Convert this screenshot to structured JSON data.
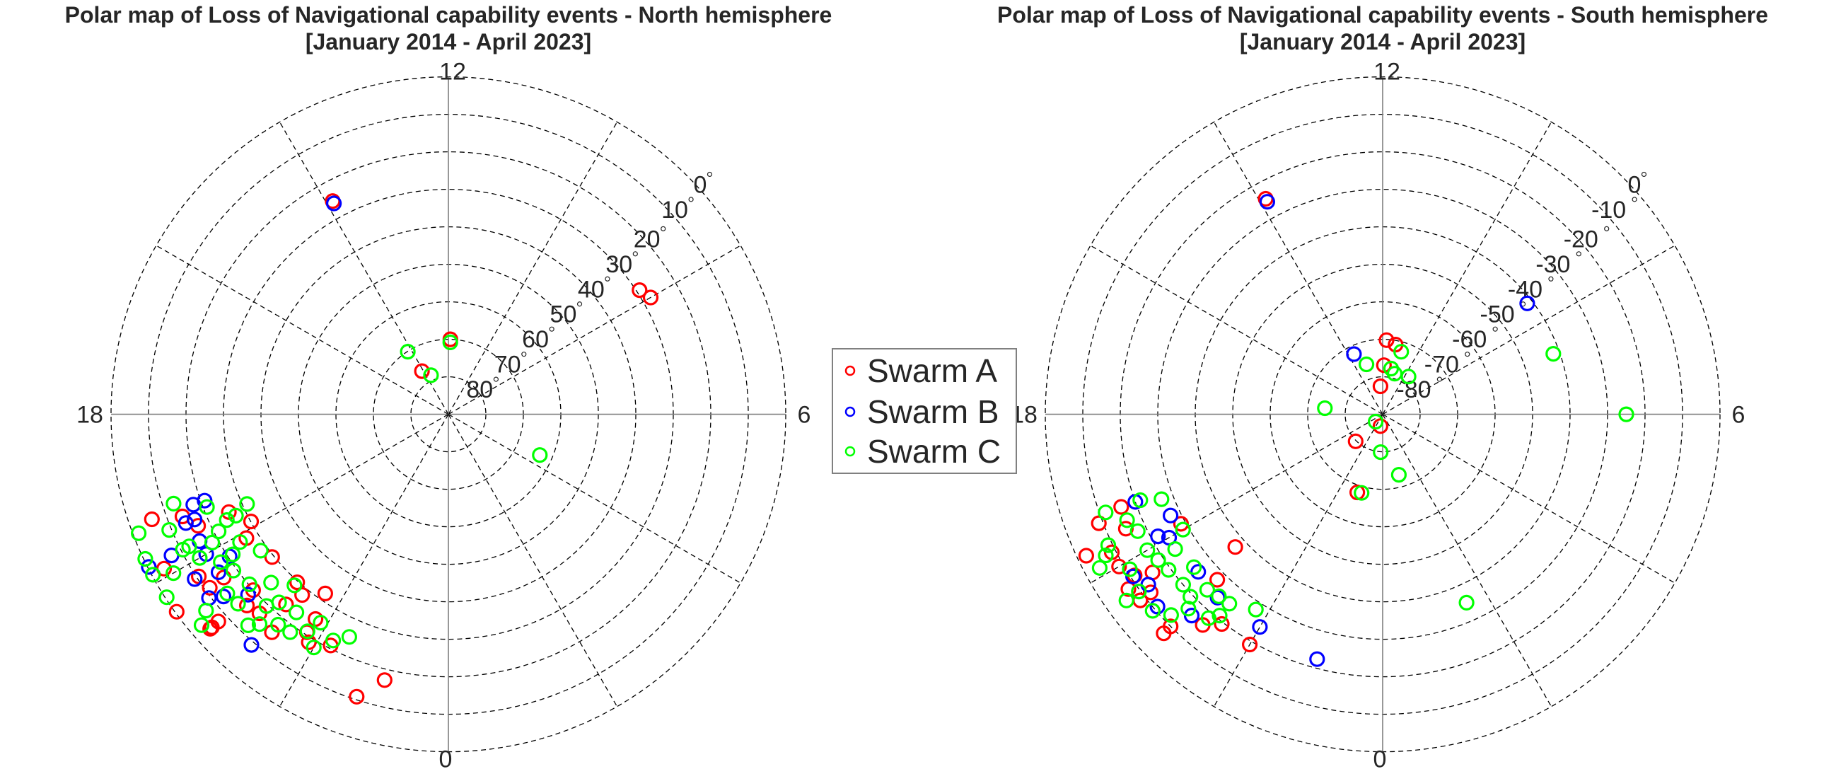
{
  "colors": {
    "Swarm A": "#ff0000",
    "Swarm B": "#0000ff",
    "Swarm C": "#00ff00",
    "grid": "#000000",
    "axis": "#7f7f7f"
  },
  "legend": {
    "placement": "center, between the two plots",
    "entries": [
      "Swarm A",
      "Swarm B",
      "Swarm C"
    ]
  },
  "chart_data": [
    {
      "type": "scatter",
      "coordinate_system": "polar (magnetic local time vs latitude)",
      "title": [
        "Polar map of Loss of Navigational capability events - North hemisphere",
        "[January 2014 - April 2023]"
      ],
      "angular_ticks": [
        "12",
        "6",
        "0",
        "18"
      ],
      "radial_ticks": [
        "80",
        "70",
        "60",
        "50",
        "40",
        "30",
        "20",
        "10",
        "0"
      ],
      "radial_tick_values": [
        80,
        70,
        60,
        50,
        40,
        30,
        20,
        10,
        0
      ],
      "radial_unit": "°",
      "rlim": [
        90,
        0
      ],
      "grid": true,
      "point_format": [
        "MLT (h)",
        "latitude (deg)"
      ],
      "series": [
        {
          "name": "Swarm A",
          "color": "#ff0000",
          "points": [
            [
              13.9,
              25.3
            ],
            [
              8.2,
              29.2
            ],
            [
              8.0,
              27.7
            ],
            [
              11.9,
              70.0
            ],
            [
              14.1,
              76.5
            ],
            [
              23.1,
              17.1
            ],
            [
              22.8,
              10.8
            ],
            [
              19.3,
              6.1
            ],
            [
              19.9,
              3.7
            ],
            [
              20.4,
              0.4
            ],
            [
              20.8,
              5.1
            ],
            [
              20.8,
              4.5
            ],
            [
              20.8,
              7.4
            ],
            [
              19.9,
              30.1
            ],
            [
              21.7,
              32.0
            ],
            [
              21.2,
              29.7
            ],
            [
              21.4,
              28.0
            ],
            [
              21.8,
              24.9
            ],
            [
              22.2,
              20.8
            ],
            [
              21.9,
              18.7
            ],
            [
              21.8,
              20.7
            ],
            [
              21.4,
              15.2
            ],
            [
              20.6,
              29.5
            ],
            [
              20.1,
              26.8
            ],
            [
              19.4,
              14.0
            ],
            [
              19.6,
              25.9
            ],
            [
              20.2,
              10.6
            ],
            [
              20.4,
              11.3
            ],
            [
              21.1,
              16.8
            ],
            [
              20.8,
              19.9
            ],
            [
              21.3,
              23.3
            ],
            [
              19.6,
              16.9
            ],
            [
              20.4,
              15.9
            ],
            [
              20.9,
              15.9
            ]
          ]
        },
        {
          "name": "Swarm B",
          "color": "#0000ff",
          "points": [
            [
              13.9,
              26.0
            ],
            [
              21.3,
              9.1
            ],
            [
              19.3,
              17.8
            ],
            [
              19.3,
              21.0
            ],
            [
              19.8,
              0.3
            ],
            [
              19.8,
              7.1
            ],
            [
              20.2,
              9.3
            ],
            [
              20.5,
              9.5
            ],
            [
              20.6,
              12.8
            ],
            [
              19.5,
              14.2
            ],
            [
              19.8,
              15.5
            ],
            [
              20.0,
              15.4
            ],
            [
              20.2,
              20.4
            ],
            [
              20.3,
              15.6
            ],
            [
              20.8,
              18.1
            ],
            [
              19.5,
              16.7
            ]
          ]
        },
        {
          "name": "Swarm C",
          "color": "#00ff00",
          "points": [
            [
              11.9,
              70.8
            ],
            [
              14.2,
              70.1
            ],
            [
              13.6,
              78.6
            ],
            [
              4.4,
              63.3
            ],
            [
              19.2,
              12.9
            ],
            [
              19.4,
              1.5
            ],
            [
              19.7,
              0.4
            ],
            [
              19.9,
              0.3
            ],
            [
              20.0,
              5.3
            ],
            [
              20.2,
              0.4
            ],
            [
              20.6,
              6.8
            ],
            [
              20.7,
              3.4
            ],
            [
              19.6,
              31.2
            ],
            [
              19.4,
              21.0
            ],
            [
              19.5,
              9.4
            ],
            [
              19.7,
              27.2
            ],
            [
              20.4,
              28.1
            ],
            [
              21.2,
              28.6
            ],
            [
              22.4,
              25.0
            ],
            [
              22.2,
              22.3
            ],
            [
              22.0,
              18.2
            ],
            [
              21.9,
              24.8
            ],
            [
              21.8,
              21.0
            ],
            [
              21.6,
              18.2
            ],
            [
              21.4,
              17.8
            ],
            [
              21.2,
              14.7
            ],
            [
              21.1,
              12.4
            ],
            [
              20.8,
              14.5
            ],
            [
              20.6,
              14.1
            ],
            [
              20.4,
              19.1
            ],
            [
              20.7,
              20.2
            ],
            [
              20.2,
              17.6
            ],
            [
              20.2,
              21.4
            ],
            [
              19.8,
              12.4
            ],
            [
              20.0,
              13.4
            ],
            [
              19.8,
              10.5
            ],
            [
              19.8,
              21.2
            ],
            [
              19.7,
              24.5
            ],
            [
              20.9,
              24.8
            ],
            [
              21.2,
              22.5
            ],
            [
              21.5,
              23.4
            ],
            [
              21.1,
              19.5
            ],
            [
              20.1,
              24.8
            ],
            [
              19.9,
              18.3
            ]
          ]
        }
      ]
    },
    {
      "type": "scatter",
      "coordinate_system": "polar (magnetic local time vs latitude)",
      "title": [
        "Polar map of Loss of Navigational capability events - South hemisphere",
        "[January 2014 - April 2023]"
      ],
      "angular_ticks": [
        "12",
        "6",
        "0",
        "18"
      ],
      "radial_ticks": [
        "-80",
        "-70",
        "-60",
        "-50",
        "-40",
        "-30",
        "-20",
        "-10",
        "0"
      ],
      "radial_tick_values": [
        -80,
        -70,
        -60,
        -50,
        -40,
        -30,
        -20,
        -10,
        0
      ],
      "radial_unit": "°",
      "rlim": [
        -90,
        0
      ],
      "grid": true,
      "point_format": [
        "MLT (h)",
        "latitude (deg)"
      ],
      "series": [
        {
          "name": "Swarm A",
          "color": "#ff0000",
          "points": [
            [
              13.9,
              -24.6
            ],
            [
              22.0,
              -19.1
            ],
            [
              11.8,
              -70.2
            ],
            [
              11.3,
              -71.1
            ],
            [
              11.9,
              -76.9
            ],
            [
              12.3,
              -82.5
            ],
            [
              23.3,
              -86.8
            ],
            [
              21.0,
              -79.8
            ],
            [
              22.8,
              -68.1
            ],
            [
              19.4,
              -8.9
            ],
            [
              19.7,
              -2.4
            ],
            [
              19.3,
              -16.0
            ],
            [
              19.6,
              -15.0
            ],
            [
              19.8,
              -8.9
            ],
            [
              20.0,
              -8.8
            ],
            [
              20.3,
              -7.7
            ],
            [
              21.0,
              -7.4
            ],
            [
              21.0,
              -10.0
            ],
            [
              20.8,
              -37.1
            ],
            [
              21.0,
              -27.6
            ],
            [
              21.3,
              -16.1
            ],
            [
              21.5,
              -19.5
            ],
            [
              20.5,
              -12.0
            ],
            [
              20.5,
              -8.5
            ],
            [
              19.9,
              -28.8
            ],
            [
              20.3,
              -15.5
            ],
            [
              20.2,
              -11.1
            ]
          ]
        },
        {
          "name": "Swarm B",
          "color": "#0000ff",
          "points": [
            [
              13.9,
              -25.5
            ],
            [
              8.5,
              -41.4
            ],
            [
              23.0,
              -22.4
            ],
            [
              22.0,
              -24.5
            ],
            [
              13.7,
              -72.2
            ],
            [
              19.3,
              -20.0
            ],
            [
              19.7,
              -27.3
            ],
            [
              20.0,
              -24.2
            ],
            [
              20.2,
              -10.6
            ],
            [
              20.4,
              -12.7
            ],
            [
              20.7,
              -11.0
            ],
            [
              20.7,
              -25.3
            ],
            [
              21.2,
              -24.2
            ],
            [
              21.1,
              -16.0
            ],
            [
              19.9,
              -21.8
            ]
          ]
        },
        {
          "name": "Swarm C",
          "color": "#00ff00",
          "points": [
            [
              7.3,
              -41.7
            ],
            [
              6.0,
              -25.0
            ],
            [
              1.6,
              -35.0
            ],
            [
              10.9,
              -72.6
            ],
            [
              13.2,
              -76.0
            ],
            [
              11.3,
              -77.6
            ],
            [
              10.9,
              -78.7
            ],
            [
              9.7,
              -77.8
            ],
            [
              17.6,
              -74.5
            ],
            [
              21.1,
              -87.3
            ],
            [
              23.8,
              -79.9
            ],
            [
              1.0,
              -73.3
            ],
            [
              23.0,
              -68.3
            ],
            [
              19.3,
              -11.6
            ],
            [
              19.7,
              -8.9
            ],
            [
              19.8,
              -7.1
            ],
            [
              19.9,
              -4.1
            ],
            [
              19.4,
              -26.8
            ],
            [
              19.3,
              -21.4
            ],
            [
              19.5,
              -16.2
            ],
            [
              20.0,
              -28.5
            ],
            [
              20.1,
              -10.9
            ],
            [
              20.4,
              -9.6
            ],
            [
              20.4,
              -5.5
            ],
            [
              20.7,
              -9.3
            ],
            [
              20.9,
              -12.2
            ],
            [
              21.0,
              -16.7
            ],
            [
              21.3,
              -18.5
            ],
            [
              21.4,
              -20.9
            ],
            [
              21.4,
              -25.0
            ],
            [
              21.8,
              -27.9
            ],
            [
              20.0,
              -17.5
            ],
            [
              20.2,
              -18.6
            ],
            [
              20.4,
              -19.4
            ],
            [
              20.7,
              -20.0
            ],
            [
              20.6,
              -25.2
            ],
            [
              21.0,
              -23.8
            ],
            [
              20.2,
              -24.0
            ],
            [
              19.7,
              -17.6
            ],
            [
              21.2,
              -24.7
            ],
            [
              20.9,
              -19.3
            ]
          ]
        }
      ]
    }
  ]
}
